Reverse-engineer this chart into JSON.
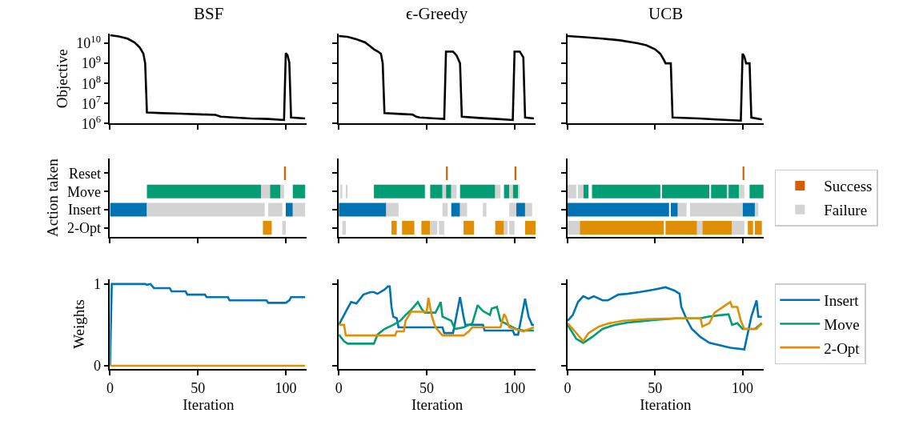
{
  "chart_data": [
    {
      "type": "line",
      "title": "BSF",
      "ylabel": "Objective",
      "log": true,
      "tick_labels": "y",
      "xlim": [
        0,
        112
      ],
      "xticks": [
        0,
        50,
        100
      ],
      "ylim": [
        1000000,
        30000000000
      ],
      "yticks": [
        {
          "value": 1000000,
          "label": "10$^{6}$"
        },
        {
          "value": 10000000,
          "label": "10$^{7}$"
        },
        {
          "value": 100000000,
          "label": "10$^{8}$"
        },
        {
          "value": 1000000000,
          "label": "10$^{9}$"
        },
        {
          "value": 10000000000,
          "label": "10$^{10}$"
        }
      ],
      "series": [
        {
          "color": "#000000",
          "x": [
            0,
            5,
            10,
            14,
            17,
            19,
            20,
            21,
            30,
            40,
            55,
            60,
            63,
            70,
            80,
            90,
            99,
            100,
            101,
            102,
            103,
            111
          ],
          "values": [
            25000000000.0,
            22000000000.0,
            17000000000.0,
            11000000000.0,
            6000000000.0,
            3000000000.0,
            1000000000.0,
            3600000.0,
            3300000.0,
            3100000.0,
            2800000.0,
            2700000.0,
            2200000.0,
            2000000.0,
            1800000.0,
            1700000.0,
            1500000.0,
            3200000000.0,
            2500000000.0,
            1100000000.0,
            2000000.0,
            1800000.0
          ]
        }
      ]
    },
    {
      "type": "line",
      "title": "ϵ-Greedy",
      "log": true,
      "tick_labels": false,
      "xlim": [
        0,
        112
      ],
      "xticks": [
        0,
        50,
        100
      ],
      "ylim": [
        1000000,
        30000000000
      ],
      "yticks": [
        {
          "value": 1000000,
          "label": "10$^{6}$"
        },
        {
          "value": 10000000,
          "label": "10$^{7}$"
        },
        {
          "value": 100000000,
          "label": "10$^{8}$"
        },
        {
          "value": 1000000000,
          "label": "10$^{9}$"
        },
        {
          "value": 10000000000,
          "label": "10$^{10}$"
        }
      ],
      "series": [
        {
          "color": "#000000",
          "x": [
            0,
            5,
            10,
            15,
            18,
            20,
            22,
            24,
            25,
            26,
            35,
            42,
            44,
            46,
            55,
            60,
            61,
            65,
            67,
            69,
            70,
            80,
            90,
            99,
            100,
            103,
            105,
            106,
            111
          ],
          "values": [
            23000000000.0,
            21000000000.0,
            16000000000.0,
            11000000000.0,
            7000000000.0,
            5000000000.0,
            4000000000.0,
            3000000000.0,
            1000000000.0,
            3300000.0,
            3000000.0,
            2800000.0,
            2200000.0,
            2000000.0,
            1800000.0,
            1700000.0,
            3800000000.0,
            3800000000.0,
            2500000000.0,
            1000000000.0,
            2200000.0,
            1900000.0,
            1700000.0,
            1500000.0,
            3800000000.0,
            3800000000.0,
            2000000000.0,
            2000000.0,
            1800000.0
          ]
        }
      ]
    },
    {
      "type": "line",
      "title": "UCB",
      "log": true,
      "tick_labels": false,
      "xlim": [
        0,
        112
      ],
      "xticks": [
        0,
        50,
        100
      ],
      "ylim": [
        1000000,
        30000000000
      ],
      "yticks": [
        {
          "value": 1000000,
          "label": "10$^{6}$"
        },
        {
          "value": 10000000,
          "label": "10$^{7}$"
        },
        {
          "value": 100000000,
          "label": "10$^{8}$"
        },
        {
          "value": 1000000000,
          "label": "10$^{9}$"
        },
        {
          "value": 10000000000,
          "label": "10$^{10}$"
        }
      ],
      "series": [
        {
          "color": "#000000",
          "x": [
            0,
            10,
            20,
            30,
            40,
            45,
            50,
            53,
            55,
            56,
            59,
            60,
            75,
            85,
            99,
            100,
            101,
            102,
            104,
            105,
            111
          ],
          "values": [
            23000000000.0,
            20000000000.0,
            17000000000.0,
            14000000000.0,
            10000000000.0,
            8000000000.0,
            5000000000.0,
            3000000000.0,
            1500000000.0,
            1000000000.0,
            1000000000.0,
            2000000.0,
            1800000.0,
            1600000.0,
            1400000.0,
            3000000000.0,
            2200000000.0,
            1000000000.0,
            1000000000.0,
            2000000.0,
            1600000.0
          ]
        }
      ]
    },
    {
      "type": "bar",
      "orientation": "horizontal",
      "ylabel": "Action taken",
      "tick_labels": "y",
      "xlim": [
        0,
        112
      ],
      "xticks": [
        0,
        50,
        100
      ],
      "categories": [
        "Reset",
        "Move",
        "Insert",
        "2-Opt"
      ],
      "series": [
        {
          "colors": [
            "#d55e00",
            "#029e73",
            "#0173b2",
            "#de8f05"
          ],
          "base": [
            99,
            21,
            0,
            87
          ],
          "values": [
            1,
            65,
            21,
            5
          ]
        },
        {
          "colors": [
            "#d55e00",
            "#029e73",
            "#0173b2",
            "#de8f05"
          ],
          "base": [
            null,
            91,
            100,
            null
          ],
          "values": [
            null,
            6,
            4,
            null
          ]
        },
        {
          "colors": [
            "#d55e00",
            "#029e73",
            "#0173b2",
            "#de8f05"
          ],
          "base": [
            null,
            104,
            null,
            null
          ],
          "values": [
            null,
            7,
            null,
            null
          ]
        },
        {
          "color": "#d3d3d3",
          "base": [
            null,
            86,
            21,
            98
          ],
          "values": [
            null,
            5,
            67,
            2
          ]
        },
        {
          "color": "#d3d3d3",
          "base": [
            null,
            97,
            90,
            null
          ],
          "values": [
            null,
            2,
            8,
            null
          ]
        },
        {
          "color": "#d3d3d3",
          "base": [
            null,
            null,
            104,
            null
          ],
          "values": [
            null,
            null,
            7,
            null
          ]
        }
      ]
    },
    {
      "type": "bar",
      "orientation": "horizontal",
      "tick_labels": false,
      "xlim": [
        0,
        112
      ],
      "xticks": [
        0,
        50,
        100
      ],
      "categories": [
        null,
        null,
        null,
        null
      ],
      "series": [
        {
          "colors": [
            "#d55e00",
            "#029e73",
            "#0173b2",
            "#de8f05"
          ],
          "base": [
            61,
            20,
            0,
            30
          ],
          "values": [
            1,
            29,
            27,
            3
          ]
        },
        {
          "colors": [
            "#d55e00",
            "#029e73",
            "#0173b2",
            "#de8f05"
          ],
          "base": [
            100,
            52,
            64,
            36
          ],
          "values": [
            1,
            7,
            5,
            7
          ]
        },
        {
          "colors": [
            "#d55e00",
            "#029e73",
            "#0173b2",
            "#de8f05"
          ],
          "base": [
            null,
            61,
            101,
            47
          ],
          "values": [
            null,
            3,
            5,
            5
          ]
        },
        {
          "colors": [
            "#d55e00",
            "#029e73",
            "#0173b2",
            "#de8f05"
          ],
          "base": [
            null,
            69,
            null,
            71
          ],
          "values": [
            null,
            20,
            null,
            6
          ]
        },
        {
          "colors": [
            "#d55e00",
            "#029e73",
            "#0173b2",
            "#de8f05"
          ],
          "base": [
            null,
            94,
            null,
            89
          ],
          "values": [
            null,
            3,
            null,
            5
          ]
        },
        {
          "colors": [
            "#d55e00",
            "#029e73",
            "#0173b2",
            "#de8f05"
          ],
          "base": [
            null,
            99,
            null,
            106
          ],
          "values": [
            null,
            3,
            null,
            6
          ]
        },
        {
          "color": "#d3d3d3",
          "base": [
            null,
            1,
            27,
            2
          ],
          "values": [
            null,
            1,
            7,
            2
          ]
        },
        {
          "color": "#d3d3d3",
          "base": [
            null,
            4,
            59,
            52
          ],
          "values": [
            null,
            1,
            3,
            4
          ]
        },
        {
          "color": "#d3d3d3",
          "base": [
            null,
            59,
            69,
            57
          ],
          "values": [
            null,
            2,
            4,
            3
          ]
        },
        {
          "color": "#d3d3d3",
          "base": [
            null,
            64,
            82,
            94
          ],
          "values": [
            null,
            3,
            2,
            2
          ]
        },
        {
          "color": "#d3d3d3",
          "base": [
            null,
            89,
            97,
            97
          ],
          "values": [
            null,
            3,
            4,
            3
          ]
        },
        {
          "color": "#d3d3d3",
          "base": [
            null,
            97,
            106,
            null
          ],
          "values": [
            null,
            2,
            4,
            null
          ]
        },
        {
          "color": "#d3d3d3",
          "base": [
            null,
            102,
            null,
            null
          ],
          "values": [
            null,
            1,
            null,
            null
          ]
        }
      ]
    },
    {
      "type": "bar",
      "orientation": "horizontal",
      "tick_labels": false,
      "legend": "right",
      "xlim": [
        0,
        112
      ],
      "xticks": [
        0,
        50,
        100
      ],
      "categories": [
        null,
        null,
        null,
        null
      ],
      "series": [
        {
          "name": "Success",
          "colors": [
            "#d55e00",
            "#029e73",
            "#0173b2",
            "#de8f05"
          ],
          "base": [
            100,
            9,
            0,
            7
          ],
          "values": [
            1,
            3,
            58,
            48
          ]
        },
        {
          "colors": [
            "#d55e00",
            "#029e73",
            "#0173b2",
            "#de8f05"
          ],
          "base": [
            null,
            14,
            59,
            56
          ],
          "values": [
            null,
            39,
            4,
            18
          ]
        },
        {
          "colors": [
            "#d55e00",
            "#029e73",
            "#0173b2",
            "#de8f05"
          ],
          "base": [
            null,
            54,
            100,
            77
          ],
          "values": [
            null,
            27,
            7,
            17
          ]
        },
        {
          "colors": [
            "#d55e00",
            "#029e73",
            "#0173b2",
            "#de8f05"
          ],
          "base": [
            null,
            82,
            null,
            103
          ],
          "values": [
            null,
            9,
            null,
            3
          ]
        },
        {
          "colors": [
            "#d55e00",
            "#029e73",
            "#0173b2",
            "#de8f05"
          ],
          "base": [
            null,
            92,
            null,
            107
          ],
          "values": [
            null,
            6,
            null,
            4
          ]
        },
        {
          "colors": [
            "#d55e00",
            "#029e73",
            "#0173b2",
            "#de8f05"
          ],
          "base": [
            null,
            104,
            null,
            null
          ],
          "values": [
            null,
            8,
            null,
            null
          ]
        },
        {
          "name": "Failure",
          "color": "#d3d3d3",
          "base": [
            null,
            0,
            63,
            0
          ],
          "values": [
            null,
            5,
            5,
            7
          ]
        },
        {
          "color": "#d3d3d3",
          "base": [
            null,
            6,
            70,
            74
          ],
          "values": [
            null,
            3,
            30,
            3
          ]
        },
        {
          "color": "#d3d3d3",
          "base": [
            null,
            91,
            107,
            94
          ],
          "values": [
            null,
            1,
            2,
            7
          ]
        },
        {
          "color": "#d3d3d3",
          "base": [
            null,
            98,
            null,
            null
          ],
          "values": [
            null,
            3,
            null,
            null
          ]
        }
      ]
    },
    {
      "type": "line",
      "ylabel": "Weights",
      "xlabel": "Iteration",
      "xlim": [
        0,
        112
      ],
      "xticks": [
        0,
        50,
        100
      ],
      "ylim": [
        -0.04,
        1.06
      ],
      "yticks": [
        {
          "value": 0,
          "label": "0"
        },
        {
          "value": 1,
          "label": "1"
        }
      ],
      "series": [
        {
          "color": "#0173b2",
          "x": [
            0,
            1,
            20,
            21,
            23,
            25,
            34,
            35,
            43,
            44,
            54,
            55,
            67,
            68,
            89,
            90,
            100,
            102,
            103,
            111
          ],
          "values": [
            0,
            1,
            1,
            0.99,
            1,
            0.95,
            0.95,
            0.91,
            0.91,
            0.87,
            0.87,
            0.84,
            0.84,
            0.8,
            0.8,
            0.77,
            0.77,
            0.8,
            0.84,
            0.84
          ]
        },
        {
          "color": "#de8f05",
          "x": [
            0,
            111
          ],
          "values": [
            0,
            0
          ]
        }
      ]
    },
    {
      "type": "line",
      "xlabel": "Iteration",
      "tick_labels": "x",
      "xlim": [
        0,
        112
      ],
      "xticks": [
        0,
        50,
        100
      ],
      "ylim": [
        -0.04,
        1.06
      ],
      "yticks": [
        {
          "value": 0,
          "label": null
        },
        {
          "value": 1,
          "label": null
        }
      ],
      "series": [
        {
          "color": "#0173b2",
          "x": [
            0,
            3,
            5,
            7,
            10,
            14,
            18,
            20,
            22,
            26,
            28,
            29,
            30,
            31,
            33,
            34,
            59,
            60,
            65,
            69,
            71,
            72,
            82,
            83,
            99,
            100,
            102,
            106,
            108,
            110,
            111
          ],
          "values": [
            0.5,
            0.62,
            0.7,
            0.78,
            0.76,
            0.87,
            0.9,
            0.9,
            0.88,
            0.93,
            0.97,
            0.97,
            0.72,
            0.6,
            0.58,
            0.47,
            0.47,
            0.4,
            0.4,
            0.84,
            0.6,
            0.5,
            0.5,
            0.43,
            0.43,
            0.38,
            0.38,
            0.82,
            0.6,
            0.5,
            0.5
          ]
        },
        {
          "color": "#029e73",
          "x": [
            0,
            3,
            5,
            20,
            22,
            26,
            31,
            35,
            38,
            41,
            45,
            47,
            49,
            55,
            58,
            59,
            64,
            66,
            71,
            76,
            79,
            82,
            86,
            87,
            90,
            92,
            98,
            101,
            105,
            111
          ],
          "values": [
            0.38,
            0.3,
            0.27,
            0.27,
            0.38,
            0.45,
            0.5,
            0.55,
            0.62,
            0.68,
            0.78,
            0.7,
            0.65,
            0.65,
            0.78,
            0.6,
            0.55,
            0.45,
            0.47,
            0.52,
            0.74,
            0.67,
            0.62,
            0.7,
            0.72,
            0.55,
            0.48,
            0.45,
            0.43,
            0.43
          ]
        },
        {
          "color": "#de8f05",
          "x": [
            0,
            3,
            4,
            32,
            33,
            37,
            38,
            40,
            41,
            50,
            51,
            53,
            55,
            59,
            71,
            74,
            76,
            92,
            94,
            95,
            97,
            105,
            111
          ],
          "values": [
            0.5,
            0.5,
            0.37,
            0.37,
            0.42,
            0.42,
            0.55,
            0.62,
            0.66,
            0.66,
            0.83,
            0.6,
            0.47,
            0.37,
            0.37,
            0.42,
            0.47,
            0.47,
            0.63,
            0.6,
            0.47,
            0.42,
            0.47
          ]
        }
      ]
    },
    {
      "type": "line",
      "xlabel": "Iteration",
      "tick_labels": "x",
      "legend": "right",
      "xlim": [
        0,
        112
      ],
      "xticks": [
        0,
        50,
        100
      ],
      "ylim": [
        -0.04,
        1.06
      ],
      "yticks": [
        {
          "value": 0,
          "label": null
        },
        {
          "value": 1,
          "label": null
        }
      ],
      "series": [
        {
          "name": "Insert",
          "color": "#0173b2",
          "x": [
            0,
            3,
            6,
            9,
            12,
            15,
            20,
            23,
            29,
            34,
            41,
            49,
            56,
            61,
            64,
            65,
            68,
            71,
            76,
            81,
            93,
            101,
            105,
            108,
            109,
            111
          ],
          "values": [
            0.55,
            0.62,
            0.78,
            0.85,
            0.82,
            0.85,
            0.8,
            0.8,
            0.87,
            0.88,
            0.9,
            0.93,
            0.96,
            0.92,
            0.88,
            0.72,
            0.57,
            0.45,
            0.35,
            0.28,
            0.22,
            0.2,
            0.6,
            0.8,
            0.6,
            0.6
          ]
        },
        {
          "name": "Move",
          "color": "#029e73",
          "x": [
            0,
            5,
            9,
            14,
            20,
            27,
            35,
            50,
            62,
            76,
            80,
            88,
            92,
            94,
            97,
            100,
            107,
            111
          ],
          "values": [
            0.5,
            0.33,
            0.28,
            0.35,
            0.45,
            0.5,
            0.53,
            0.56,
            0.58,
            0.58,
            0.6,
            0.62,
            0.63,
            0.5,
            0.52,
            0.45,
            0.45,
            0.52
          ]
        },
        {
          "name": "2-Opt",
          "color": "#de8f05",
          "x": [
            0,
            3,
            9,
            12,
            18,
            24,
            32,
            45,
            62,
            76,
            77,
            81,
            84,
            93,
            94,
            97,
            99,
            101,
            108,
            111
          ],
          "values": [
            0.52,
            0.45,
            0.3,
            0.4,
            0.48,
            0.52,
            0.55,
            0.57,
            0.58,
            0.58,
            0.48,
            0.52,
            0.65,
            0.78,
            0.72,
            0.72,
            0.55,
            0.45,
            0.45,
            0.52
          ]
        }
      ]
    }
  ]
}
